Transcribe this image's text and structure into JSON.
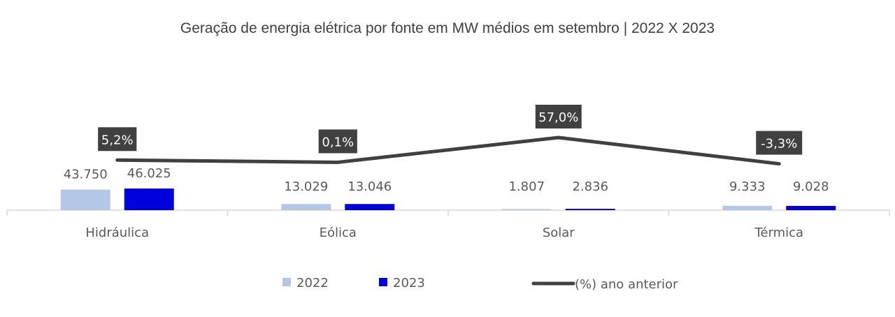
{
  "chart_data": {
    "type": "bar",
    "title": "Geração de energia elétrica por fonte em MW médios em setembro | 2022 X 2023",
    "categories": [
      "Hidráulica",
      "Eólica",
      "Solar",
      "Térmica"
    ],
    "series": [
      {
        "name": "2022",
        "color": "#b4c7e7",
        "values": [
          43750,
          13029,
          1807,
          9333
        ],
        "labels": [
          "43.750",
          "13.029",
          "1.807",
          "9.333"
        ]
      },
      {
        "name": "2023",
        "color": "#0000dd",
        "values": [
          46025,
          13046,
          2836,
          9028
        ],
        "labels": [
          "46.025",
          "13.046",
          "2.836",
          "9.028"
        ]
      }
    ],
    "line_series": {
      "name": "(%) ano anterior",
      "color": "#404040",
      "values": [
        5.2,
        0.1,
        57.0,
        -3.3
      ],
      "labels": [
        "5,2%",
        "0,1%",
        "57,0%",
        "-3,3%"
      ]
    },
    "legend_position": "bottom",
    "grid": false
  }
}
